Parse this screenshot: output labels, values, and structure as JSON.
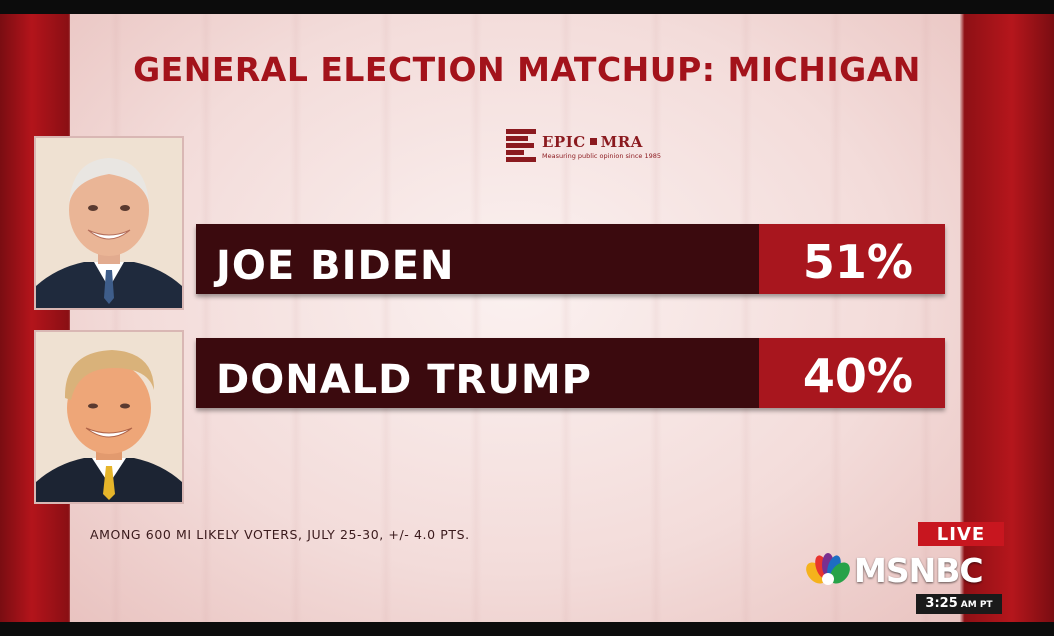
{
  "graphic": {
    "title": "GENERAL ELECTION MATCHUP: MICHIGAN",
    "pollster": {
      "name_left": "EPIC",
      "name_right": "MRA",
      "tagline": "Measuring public opinion since 1985",
      "logo_icon": "epic-mra-logo-icon"
    },
    "candidates": [
      {
        "name": "JOE BIDEN",
        "percent": "51%",
        "photo_icon": "candidate-portrait-icon"
      },
      {
        "name": "DONALD TRUMP",
        "percent": "40%",
        "photo_icon": "candidate-portrait-icon"
      }
    ],
    "footnote": "AMONG 600 MI LIKELY VOTERS, JULY 25-30, +/- 4.0 PTS."
  },
  "broadcast": {
    "live_label": "LIVE",
    "network": "MSNBC",
    "network_icon": "peacock-logo-icon",
    "time": "3:25",
    "ampm": "AM PT"
  },
  "colors": {
    "title_red": "#a3131b",
    "bar_dark": "#3b0a0e",
    "bar_accent": "#a8161e",
    "live_red": "#c8161f"
  }
}
